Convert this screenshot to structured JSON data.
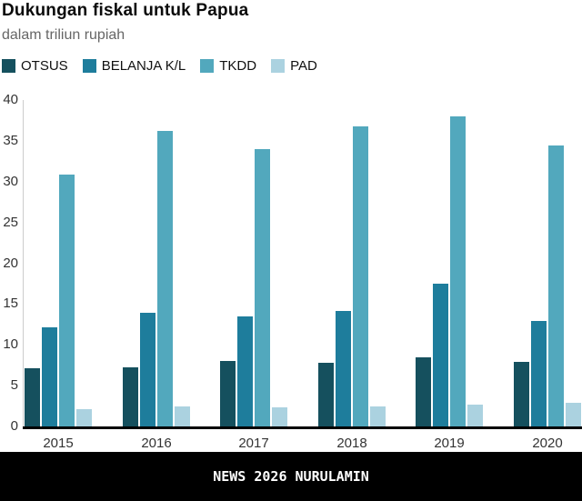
{
  "header": {
    "title": "Dukungan fiskal untuk Papua",
    "subtitle": "dalam triliun rupiah"
  },
  "footer": {
    "text": "NEWS 2026 NURULAMIN"
  },
  "colors": {
    "otsus": "#15505e",
    "belanja_kl": "#1e7d9c",
    "tkdd": "#52a8bd",
    "pad": "#abd2e0",
    "axis_line": "#cccccc",
    "baseline": "#000000",
    "title_text": "#0b0b0b",
    "subtitle_text": "#666666",
    "tick_text": "#333333",
    "footer_bg": "#000000",
    "footer_text": "#ffffff"
  },
  "chart_data": {
    "type": "bar",
    "title": "Dukungan fiskal untuk Papua",
    "subtitle": "dalam triliun rupiah",
    "categories": [
      "2015",
      "2016",
      "2017",
      "2018",
      "2019",
      "2020"
    ],
    "series": [
      {
        "name": "OTSUS",
        "color": "#15505e",
        "values": [
          7.1,
          7.2,
          8.0,
          7.8,
          8.5,
          7.9
        ]
      },
      {
        "name": "BELANJA K/L",
        "color": "#1e7d9c",
        "values": [
          12.1,
          13.9,
          13.5,
          14.2,
          17.5,
          12.9
        ]
      },
      {
        "name": "TKDD",
        "color": "#52a8bd",
        "values": [
          30.9,
          36.2,
          34.0,
          36.8,
          38.0,
          34.4
        ]
      },
      {
        "name": "PAD",
        "color": "#abd2e0",
        "values": [
          2.1,
          2.4,
          2.3,
          2.4,
          2.7,
          2.9
        ]
      }
    ],
    "xlabel": "",
    "ylabel": "",
    "ylim": [
      0,
      40
    ],
    "yticks": [
      0,
      5,
      10,
      15,
      20,
      25,
      30,
      35,
      40
    ],
    "grid": false,
    "legend_position": "top-left"
  }
}
